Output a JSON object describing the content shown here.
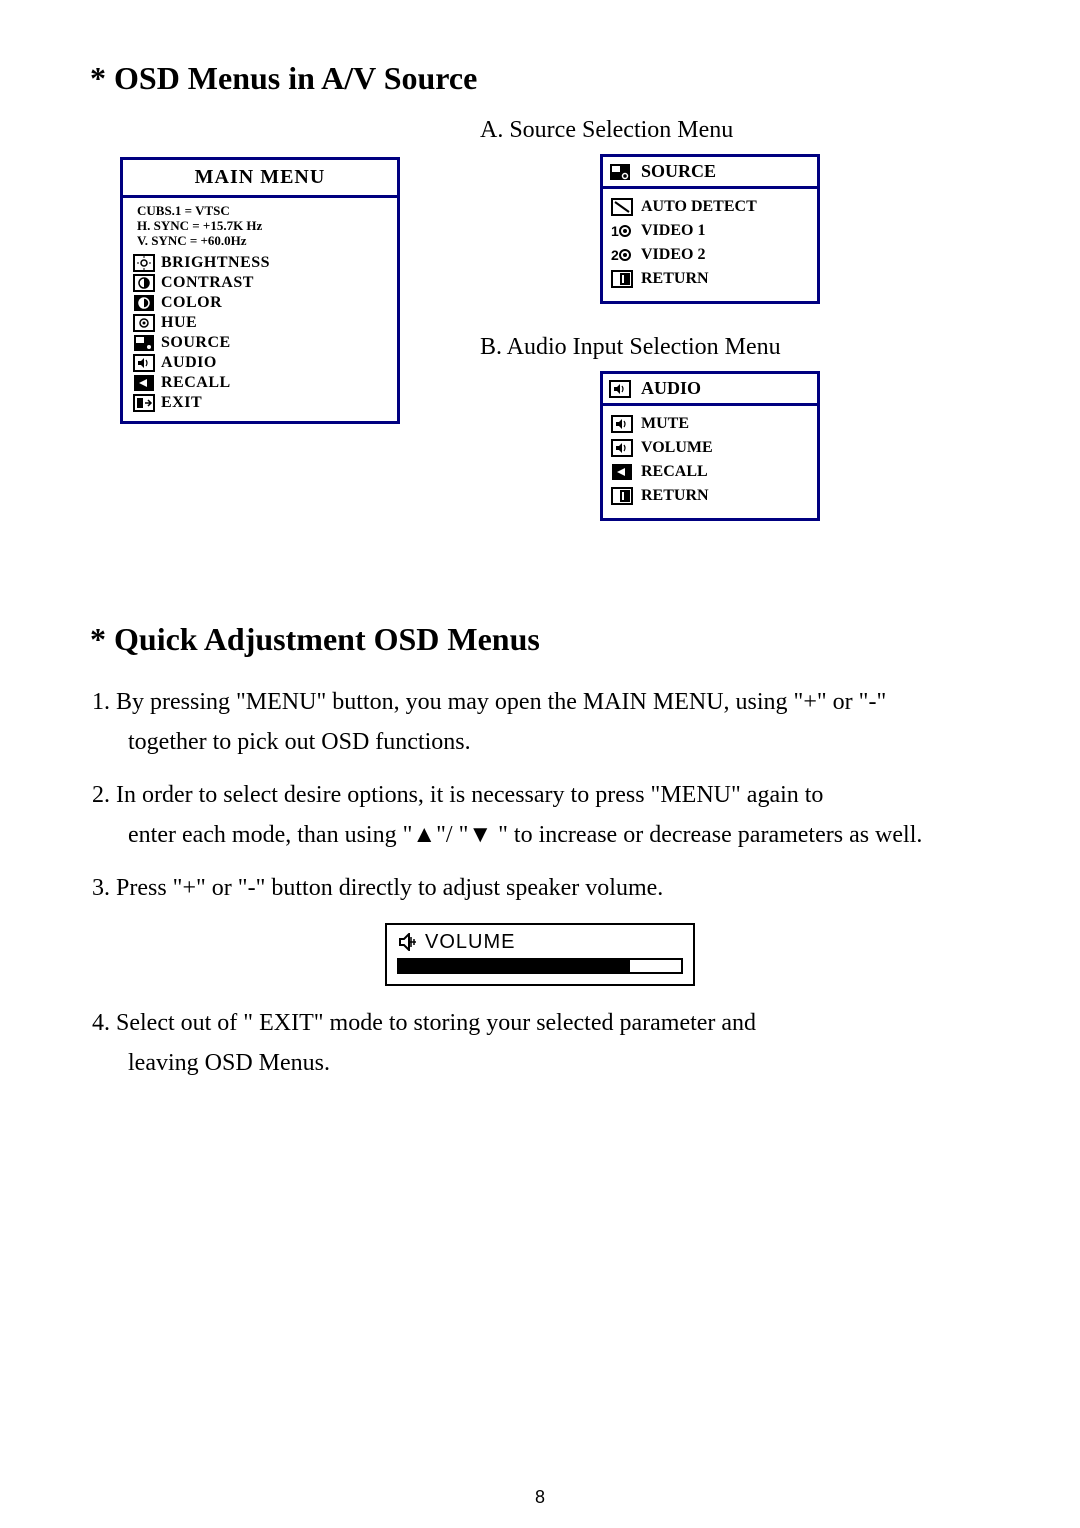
{
  "section1_title": "* OSD Menus in A/V Source",
  "main_menu": {
    "header": "MAIN MENU",
    "sync_lines": [
      "CUBS.1  =  VTSC",
      "H. SYNC =  +15.7K Hz",
      "V. SYNC =   +60.0Hz"
    ],
    "items": [
      {
        "label": "BRIGHTNESS",
        "icon": "brightness"
      },
      {
        "label": "CONTRAST",
        "icon": "contrast"
      },
      {
        "label": "COLOR",
        "icon": "color"
      },
      {
        "label": "HUE",
        "icon": "hue"
      },
      {
        "label": "SOURCE",
        "icon": "source"
      },
      {
        "label": "AUDIO",
        "icon": "audio"
      },
      {
        "label": "RECALL",
        "icon": "recall"
      },
      {
        "label": "EXIT",
        "icon": "exit"
      }
    ]
  },
  "source_menu": {
    "title": "A. Source Selection Menu",
    "header": "SOURCE",
    "items": [
      {
        "label": "AUTO DETECT",
        "icon": "autodetect"
      },
      {
        "label": "VIDEO 1",
        "icon": "video1"
      },
      {
        "label": "VIDEO 2",
        "icon": "video2"
      },
      {
        "label": "RETURN",
        "icon": "return"
      }
    ]
  },
  "audio_menu": {
    "title": "B. Audio Input Selection Menu",
    "header": "AUDIO",
    "items": [
      {
        "label": "MUTE",
        "icon": "audio"
      },
      {
        "label": "VOLUME",
        "icon": "audio"
      },
      {
        "label": "RECALL",
        "icon": "recall"
      },
      {
        "label": "RETURN",
        "icon": "return"
      }
    ]
  },
  "section2_title": "* Quick Adjustment OSD Menus",
  "paragraphs": {
    "p1a": "1. By pressing \"MENU\" button, you may open the MAIN MENU, using \"+\" or \"-\"",
    "p1b": "together to pick out OSD functions.",
    "p2a": "2. In order to select desire options, it is necessary to press \"MENU\" again to",
    "p2b": "enter each mode, than using \"▲\"/ \"▼ \" to increase or decrease parameters as well.",
    "p3": "3. Press \"+\" or \"-\" button directly to adjust speaker volume.",
    "p4a": "4. Select out of \" EXIT\" mode to storing your selected parameter and",
    "p4b": "leaving  OSD Menus."
  },
  "volume": {
    "label": "VOLUME",
    "fill_percent": 82
  },
  "page_number": "8",
  "colors": {
    "menu_border": "#000080",
    "text": "#000000"
  }
}
